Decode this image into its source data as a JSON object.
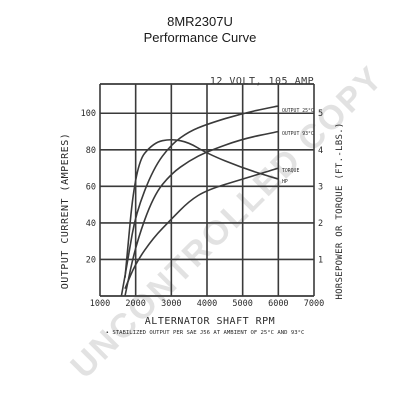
{
  "header": {
    "model": "8MR2307U",
    "subtitle": "Performance Curve"
  },
  "watermark": "UNCONTROLLED COPY",
  "chart_data": {
    "type": "line",
    "title": "12 VOLT, 105 AMP",
    "xlabel": "ALTERNATOR SHAFT RPM",
    "ylabel": "OUTPUT CURRENT (AMPERES)",
    "y2label": "HORSEPOWER OR TORQUE (FT.-LBS.)",
    "footnote": "• STABILIZED OUTPUT PER SAE J56 AT AMBIENT OF 25°C AND 93°C",
    "xlim": [
      1000,
      7000
    ],
    "ylim": [
      0,
      120
    ],
    "y2lim": [
      0,
      6
    ],
    "x_ticks": [
      1000,
      2000,
      3000,
      4000,
      5000,
      6000,
      7000
    ],
    "y_ticks": [
      20,
      40,
      60,
      80,
      100
    ],
    "y2_ticks": [
      1,
      2,
      3,
      4,
      5
    ],
    "grid": true,
    "series": [
      {
        "name": "OUTPUT 25°C",
        "axis": "left",
        "x": [
          1600,
          1800,
          2000,
          2500,
          3000,
          3500,
          4000,
          5000,
          6000
        ],
        "y": [
          0,
          22,
          45,
          70,
          83,
          90,
          94,
          100,
          104
        ]
      },
      {
        "name": "OUTPUT 93°C",
        "axis": "left",
        "x": [
          1700,
          2000,
          2500,
          3000,
          3500,
          4000,
          5000,
          6000
        ],
        "y": [
          0,
          28,
          55,
          67,
          74,
          79,
          86,
          90
        ]
      },
      {
        "name": "TORQUE",
        "axis": "right",
        "x": [
          1700,
          2000,
          2500,
          3000,
          3500,
          4000,
          5000,
          6000
        ],
        "y": [
          0.5,
          3.6,
          4.2,
          4.3,
          4.2,
          3.9,
          3.5,
          3.2
        ]
      },
      {
        "name": "HP",
        "axis": "right",
        "x": [
          1700,
          2000,
          2500,
          3000,
          3500,
          4000,
          5000,
          6000
        ],
        "y": [
          0.2,
          0.9,
          1.6,
          2.1,
          2.6,
          2.9,
          3.2,
          3.5
        ]
      }
    ],
    "annotations": [
      "OUTPUT 25°C",
      "OUTPUT 93°C",
      "TORQUE",
      "HP"
    ],
    "colors": {
      "ink": "#3a3a3a",
      "watermark": "#d8d8d8"
    }
  }
}
